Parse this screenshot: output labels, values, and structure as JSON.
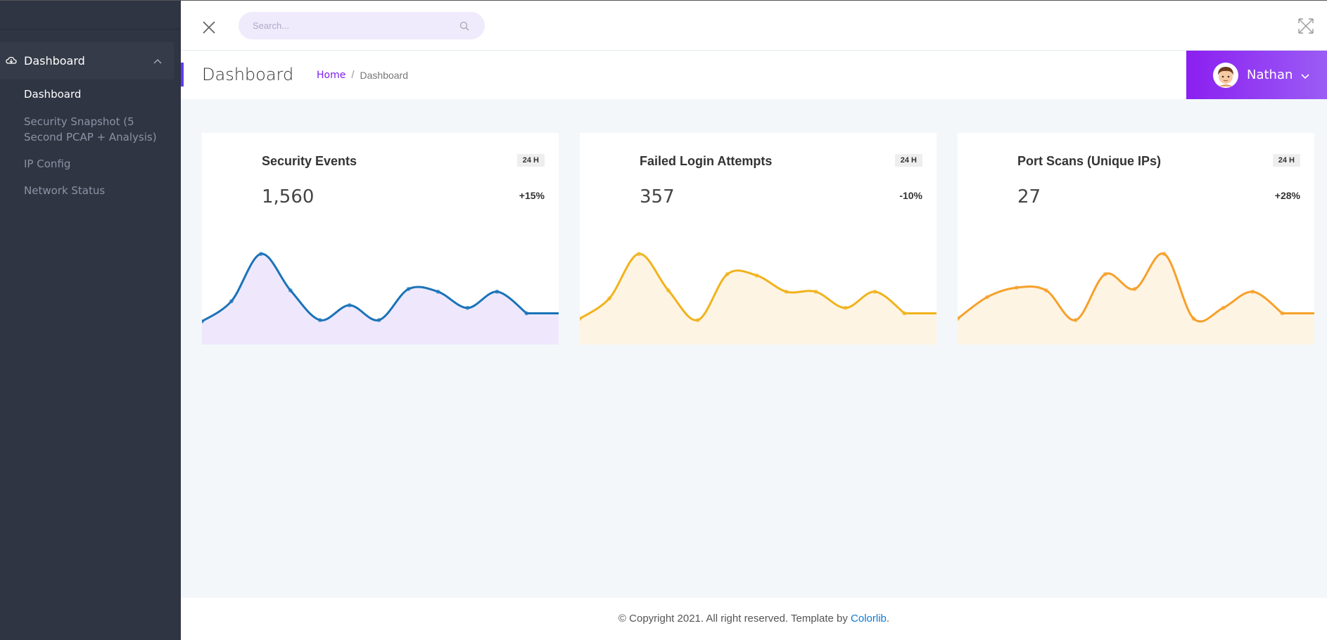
{
  "sidebar": {
    "group_label": "Dashboard",
    "items": [
      {
        "label": "Dashboard",
        "active": true
      },
      {
        "label": "Security Snapshot (5 Second PCAP + Analysis)",
        "active": false
      },
      {
        "label": "IP Config",
        "active": false
      },
      {
        "label": "Network Status",
        "active": false
      }
    ]
  },
  "header": {
    "search_placeholder": "Search..."
  },
  "titlebar": {
    "title": "Dashboard",
    "breadcrumb_home": "Home",
    "breadcrumb_sep": "/",
    "breadcrumb_current": "Dashboard"
  },
  "user": {
    "name": "Nathan"
  },
  "cards": [
    {
      "title": "Security Events",
      "badge": "24 H",
      "value": "1,560",
      "change": "+15%",
      "color": "#1a73b8",
      "fill": "#efe8fd",
      "series": [
        10,
        25,
        60,
        33,
        11,
        22,
        11,
        34,
        32,
        20,
        32,
        16
      ]
    },
    {
      "title": "Failed Login Attempts",
      "badge": "24 H",
      "value": "357",
      "change": "-10%",
      "color": "#f1b31c",
      "fill": "#fdf4e4",
      "series": [
        12,
        27,
        60,
        33,
        11,
        45,
        44,
        32,
        32,
        20,
        32,
        16
      ]
    },
    {
      "title": "Port Scans (Unique IPs)",
      "badge": "24 H",
      "value": "27",
      "change": "+28%",
      "color": "#f7a02a",
      "fill": "#fdf4e4",
      "series": [
        12,
        28,
        35,
        33,
        11,
        45,
        34,
        60,
        12,
        20,
        32,
        16
      ]
    }
  ],
  "footer": {
    "text": "© Copyright 2021. All right reserved. Template by ",
    "link": "Colorlib",
    "suffix": "."
  }
}
